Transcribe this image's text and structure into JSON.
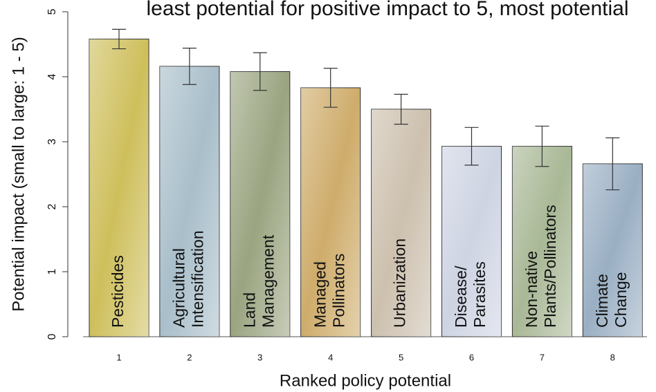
{
  "chart_data": {
    "type": "bar",
    "title": "least potential for positive impact to 5, most potential",
    "x_label": "Ranked policy potential",
    "y_label": "Potential impact (small to large: 1 - 5)",
    "categories": [
      "1",
      "2",
      "3",
      "4",
      "5",
      "6",
      "7",
      "8"
    ],
    "values": [
      4.58,
      4.16,
      4.08,
      3.83,
      3.5,
      2.93,
      2.93,
      2.66
    ],
    "errors": [
      0.15,
      0.28,
      0.29,
      0.3,
      0.23,
      0.29,
      0.31,
      0.4
    ],
    "bar_labels": [
      [
        "Pesticides"
      ],
      [
        "Agricultural",
        "Intensification"
      ],
      [
        "Land",
        "Management"
      ],
      [
        "Managed",
        "Pollinators"
      ],
      [
        "Urbanization"
      ],
      [
        "Disease/",
        "Parasites"
      ],
      [
        "Non-native",
        "Plants/Pollinators"
      ],
      [
        "Climate",
        "Change"
      ]
    ],
    "colors": [
      "#c9b84a",
      "#9fb7c4",
      "#8f9a72",
      "#c9a35a",
      "#c7b9a5",
      "#c9cfe0",
      "#9fb08a",
      "#8fa6bd"
    ],
    "ylim": [
      0,
      5
    ],
    "yticks": [
      0,
      1,
      2,
      3,
      4,
      5
    ]
  }
}
